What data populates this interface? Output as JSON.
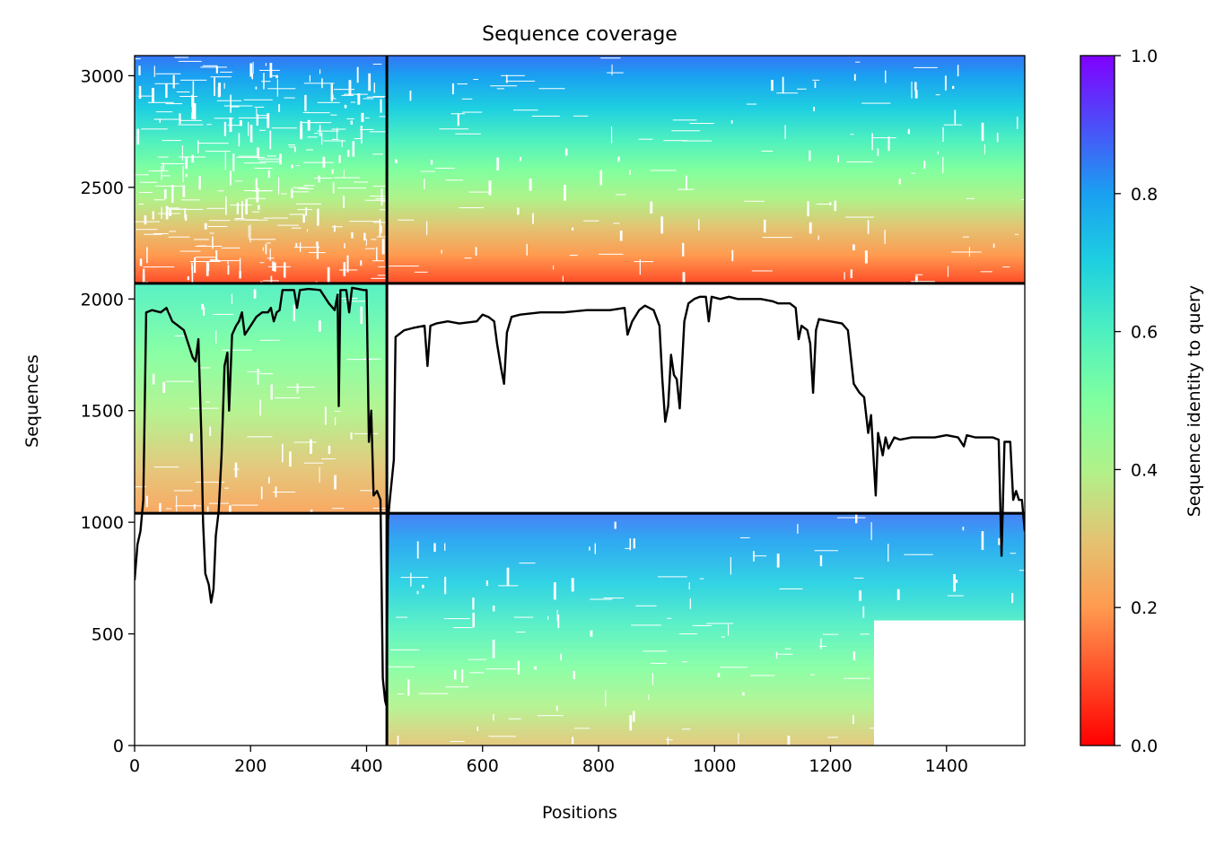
{
  "chart_data": {
    "type": "heatmap",
    "title": "Sequence coverage",
    "xlabel": "Positions",
    "ylabel": "Sequences",
    "xlim": [
      0,
      1535
    ],
    "ylim": [
      0,
      3090
    ],
    "xticks": [
      0,
      200,
      400,
      600,
      800,
      1000,
      1200,
      1400
    ],
    "yticks": [
      0,
      500,
      1000,
      1500,
      2000,
      2500,
      3000
    ],
    "colorbar": {
      "label": "Sequence identity to query",
      "colormap": "rainbow_r",
      "range": [
        0,
        1.0
      ],
      "ticks": [
        "0.0",
        "0.2",
        "0.4",
        "0.6",
        "0.8",
        "1.0"
      ]
    },
    "chain_boundary_x": 435,
    "sequence_boundaries_y": [
      1040,
      2070
    ],
    "blocks": [
      {
        "name": "chain A paired",
        "x": [
          0,
          435
        ],
        "y": [
          2070,
          3090
        ],
        "identity_top": 0.85,
        "identity_bottom": 0.1,
        "gap_ratio": 0.22
      },
      {
        "name": "chain B paired",
        "x": [
          435,
          1535
        ],
        "y": [
          2070,
          3090
        ],
        "identity_top": 0.85,
        "identity_bottom": 0.1,
        "gap_ratio": 0.1
      },
      {
        "name": "chain A unpaired",
        "x": [
          0,
          435
        ],
        "y": [
          1040,
          2070
        ],
        "identity_top": 0.6,
        "identity_bottom": 0.22,
        "gap_ratio": 0.05
      },
      {
        "name": "chain B unpaired",
        "x": [
          435,
          1535
        ],
        "y": [
          0,
          1040
        ],
        "identity_top": 0.85,
        "identity_bottom": 0.3,
        "gap_ratio": 0.1
      }
    ],
    "coverage_line": {
      "color": "#000000",
      "points": [
        [
          0,
          740
        ],
        [
          5,
          900
        ],
        [
          10,
          960
        ],
        [
          15,
          1100
        ],
        [
          20,
          1940
        ],
        [
          30,
          1950
        ],
        [
          45,
          1940
        ],
        [
          55,
          1960
        ],
        [
          65,
          1900
        ],
        [
          75,
          1880
        ],
        [
          85,
          1860
        ],
        [
          95,
          1780
        ],
        [
          100,
          1740
        ],
        [
          105,
          1720
        ],
        [
          110,
          1820
        ],
        [
          115,
          1400
        ],
        [
          118,
          1000
        ],
        [
          122,
          770
        ],
        [
          128,
          720
        ],
        [
          132,
          640
        ],
        [
          136,
          700
        ],
        [
          140,
          940
        ],
        [
          145,
          1050
        ],
        [
          150,
          1300
        ],
        [
          155,
          1700
        ],
        [
          160,
          1760
        ],
        [
          163,
          1500
        ],
        [
          168,
          1840
        ],
        [
          175,
          1880
        ],
        [
          180,
          1900
        ],
        [
          185,
          1940
        ],
        [
          190,
          1840
        ],
        [
          200,
          1880
        ],
        [
          210,
          1920
        ],
        [
          220,
          1940
        ],
        [
          230,
          1940
        ],
        [
          235,
          1960
        ],
        [
          240,
          1900
        ],
        [
          245,
          1940
        ],
        [
          250,
          1950
        ],
        [
          255,
          2040
        ],
        [
          265,
          2040
        ],
        [
          275,
          2040
        ],
        [
          280,
          1960
        ],
        [
          285,
          2040
        ],
        [
          300,
          2045
        ],
        [
          320,
          2040
        ],
        [
          335,
          1980
        ],
        [
          345,
          1950
        ],
        [
          350,
          2020
        ],
        [
          352,
          1520
        ],
        [
          355,
          2040
        ],
        [
          365,
          2040
        ],
        [
          370,
          1940
        ],
        [
          375,
          2050
        ],
        [
          395,
          2040
        ],
        [
          400,
          2040
        ],
        [
          404,
          1360
        ],
        [
          408,
          1500
        ],
        [
          412,
          1120
        ],
        [
          418,
          1140
        ],
        [
          424,
          1100
        ],
        [
          428,
          300
        ],
        [
          432,
          200
        ],
        [
          434,
          180
        ],
        [
          437,
          1010
        ],
        [
          440,
          1100
        ],
        [
          444,
          1200
        ],
        [
          447,
          1280
        ],
        [
          450,
          1830
        ],
        [
          465,
          1860
        ],
        [
          480,
          1870
        ],
        [
          500,
          1880
        ],
        [
          505,
          1700
        ],
        [
          510,
          1880
        ],
        [
          520,
          1890
        ],
        [
          540,
          1900
        ],
        [
          560,
          1890
        ],
        [
          590,
          1900
        ],
        [
          600,
          1930
        ],
        [
          610,
          1920
        ],
        [
          620,
          1900
        ],
        [
          625,
          1800
        ],
        [
          632,
          1690
        ],
        [
          637,
          1620
        ],
        [
          642,
          1850
        ],
        [
          650,
          1920
        ],
        [
          665,
          1930
        ],
        [
          700,
          1940
        ],
        [
          740,
          1940
        ],
        [
          780,
          1950
        ],
        [
          820,
          1950
        ],
        [
          845,
          1960
        ],
        [
          850,
          1840
        ],
        [
          858,
          1900
        ],
        [
          870,
          1950
        ],
        [
          880,
          1970
        ],
        [
          895,
          1950
        ],
        [
          905,
          1880
        ],
        [
          910,
          1640
        ],
        [
          915,
          1450
        ],
        [
          920,
          1520
        ],
        [
          925,
          1750
        ],
        [
          930,
          1660
        ],
        [
          935,
          1640
        ],
        [
          940,
          1510
        ],
        [
          948,
          1900
        ],
        [
          955,
          1980
        ],
        [
          965,
          2000
        ],
        [
          975,
          2010
        ],
        [
          985,
          2010
        ],
        [
          990,
          1900
        ],
        [
          995,
          2010
        ],
        [
          1010,
          2000
        ],
        [
          1025,
          2010
        ],
        [
          1040,
          2000
        ],
        [
          1060,
          2000
        ],
        [
          1080,
          2000
        ],
        [
          1100,
          1990
        ],
        [
          1110,
          1980
        ],
        [
          1130,
          1980
        ],
        [
          1140,
          1960
        ],
        [
          1145,
          1820
        ],
        [
          1150,
          1880
        ],
        [
          1160,
          1860
        ],
        [
          1165,
          1800
        ],
        [
          1170,
          1580
        ],
        [
          1175,
          1860
        ],
        [
          1180,
          1910
        ],
        [
          1200,
          1900
        ],
        [
          1220,
          1890
        ],
        [
          1230,
          1860
        ],
        [
          1240,
          1620
        ],
        [
          1250,
          1580
        ],
        [
          1258,
          1560
        ],
        [
          1265,
          1400
        ],
        [
          1270,
          1480
        ],
        [
          1278,
          1120
        ],
        [
          1282,
          1400
        ],
        [
          1290,
          1300
        ],
        [
          1295,
          1380
        ],
        [
          1300,
          1330
        ],
        [
          1310,
          1380
        ],
        [
          1320,
          1370
        ],
        [
          1340,
          1380
        ],
        [
          1360,
          1380
        ],
        [
          1380,
          1380
        ],
        [
          1400,
          1390
        ],
        [
          1420,
          1380
        ],
        [
          1430,
          1340
        ],
        [
          1435,
          1390
        ],
        [
          1450,
          1380
        ],
        [
          1470,
          1380
        ],
        [
          1480,
          1380
        ],
        [
          1490,
          1370
        ],
        [
          1495,
          850
        ],
        [
          1500,
          1360
        ],
        [
          1510,
          1360
        ],
        [
          1515,
          1100
        ],
        [
          1520,
          1140
        ],
        [
          1525,
          1100
        ],
        [
          1530,
          1100
        ],
        [
          1535,
          960
        ]
      ]
    }
  }
}
